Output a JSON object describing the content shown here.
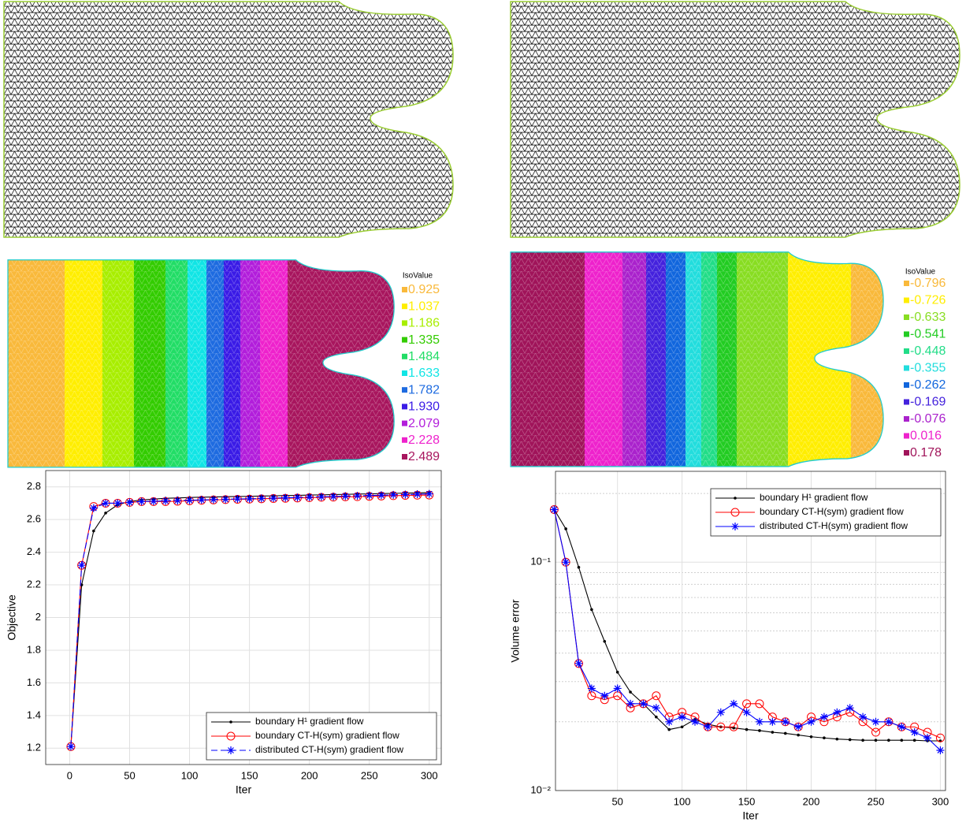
{
  "contours": [
    {
      "title": "IsoValue",
      "levels": [
        {
          "label": "0.925",
          "color": "#f9b93b"
        },
        {
          "label": "1.037",
          "color": "#ffee00"
        },
        {
          "label": "1.186",
          "color": "#a8ee00"
        },
        {
          "label": "1.335",
          "color": "#33cc00"
        },
        {
          "label": "1.484",
          "color": "#22dd66"
        },
        {
          "label": "1.633",
          "color": "#11e5e5"
        },
        {
          "label": "1.782",
          "color": "#1e6be0"
        },
        {
          "label": "1.930",
          "color": "#3a1be6"
        },
        {
          "label": "2.079",
          "color": "#b21edb"
        },
        {
          "label": "2.228",
          "color": "#ee22cc"
        },
        {
          "label": "2.489",
          "color": "#a8165e"
        }
      ]
    },
    {
      "title": "IsoValue",
      "levels": [
        {
          "label": "-0.796",
          "color": "#f9b93b"
        },
        {
          "label": "-0.726",
          "color": "#ffee00"
        },
        {
          "label": "-0.633",
          "color": "#88dd22"
        },
        {
          "label": "-0.541",
          "color": "#22cc22"
        },
        {
          "label": "-0.448",
          "color": "#22dd88"
        },
        {
          "label": "-0.355",
          "color": "#22dddd"
        },
        {
          "label": "-0.262",
          "color": "#1166dd"
        },
        {
          "label": "-0.169",
          "color": "#4422dd"
        },
        {
          "label": "-0.076",
          "color": "#aa22cc"
        },
        {
          "label": "0.016",
          "color": "#ee22cc"
        },
        {
          "label": "0.178",
          "color": "#a0145a"
        }
      ]
    }
  ],
  "chart_data": [
    {
      "type": "line",
      "x_label": "Iter",
      "y_label": "Objective",
      "grid": true,
      "legend": "lower right",
      "xlim": [
        -20,
        310
      ],
      "xticks": [
        0,
        50,
        100,
        150,
        200,
        250,
        300
      ],
      "ylim": [
        1.1,
        2.9
      ],
      "yticks": [
        1.2,
        1.4,
        1.6,
        1.8,
        2,
        2.2,
        2.4,
        2.6,
        2.8
      ],
      "x": [
        1,
        10,
        20,
        30,
        40,
        50,
        60,
        70,
        80,
        90,
        100,
        110,
        120,
        130,
        140,
        150,
        160,
        170,
        180,
        190,
        200,
        210,
        220,
        230,
        240,
        250,
        260,
        270,
        280,
        290,
        300
      ],
      "series": [
        {
          "name": "boundary H¹ gradient flow",
          "color": "#000000",
          "marker": "dot",
          "dash": false,
          "values": [
            1.21,
            2.2,
            2.53,
            2.64,
            2.69,
            2.71,
            2.72,
            2.725,
            2.73,
            2.732,
            2.735,
            2.737,
            2.738,
            2.74,
            2.741,
            2.742,
            2.744,
            2.745,
            2.747,
            2.748,
            2.75,
            2.751,
            2.753,
            2.754,
            2.756,
            2.757,
            2.759,
            2.76,
            2.762,
            2.763,
            2.765
          ]
        },
        {
          "name": "boundary CT-H(sym) gradient flow",
          "color": "#ff0000",
          "marker": "circle",
          "dash": false,
          "values": [
            1.21,
            2.32,
            2.68,
            2.7,
            2.7,
            2.705,
            2.71,
            2.71,
            2.71,
            2.712,
            2.715,
            2.718,
            2.72,
            2.722,
            2.724,
            2.725,
            2.727,
            2.729,
            2.73,
            2.732,
            2.734,
            2.736,
            2.737,
            2.739,
            2.74,
            2.742,
            2.744,
            2.746,
            2.748,
            2.749,
            2.75
          ]
        },
        {
          "name": "distributed CT-H(sym) gradient flow",
          "color": "#0000ff",
          "marker": "star",
          "dash": true,
          "values": [
            1.21,
            2.32,
            2.67,
            2.7,
            2.7,
            2.705,
            2.71,
            2.712,
            2.714,
            2.716,
            2.718,
            2.72,
            2.722,
            2.724,
            2.726,
            2.727,
            2.729,
            2.731,
            2.733,
            2.735,
            2.737,
            2.739,
            2.741,
            2.743,
            2.745,
            2.747,
            2.749,
            2.751,
            2.753,
            2.755,
            2.757
          ]
        }
      ]
    },
    {
      "type": "line",
      "x_label": "Iter",
      "y_label": "Volume error",
      "grid": true,
      "log_y": true,
      "legend": "upper right",
      "xlim": [
        2,
        304
      ],
      "xticks": [
        50,
        100,
        150,
        200,
        250,
        300
      ],
      "ylim": [
        0.01,
        0.25
      ],
      "yticks": [
        {
          "value": 0.01,
          "label": "10⁻²"
        },
        {
          "value": 0.1,
          "label": "10⁻¹"
        }
      ],
      "yminorticks": [
        0.02,
        0.03,
        0.04,
        0.05,
        0.06,
        0.07,
        0.08,
        0.09,
        0.2
      ],
      "x": [
        1,
        10,
        20,
        30,
        40,
        50,
        60,
        70,
        80,
        90,
        100,
        110,
        120,
        130,
        140,
        150,
        160,
        170,
        180,
        190,
        200,
        210,
        220,
        230,
        240,
        250,
        260,
        270,
        280,
        290,
        300
      ],
      "series": [
        {
          "name": "boundary H¹ gradient flow",
          "color": "#000000",
          "marker": "dot",
          "dash": false,
          "values": [
            0.17,
            0.14,
            0.095,
            0.062,
            0.045,
            0.033,
            0.027,
            0.024,
            0.021,
            0.0185,
            0.019,
            0.0205,
            0.0195,
            0.019,
            0.0188,
            0.0185,
            0.0183,
            0.018,
            0.0178,
            0.0175,
            0.0172,
            0.017,
            0.0168,
            0.0167,
            0.0166,
            0.0166,
            0.0166,
            0.0166,
            0.0166,
            0.0165,
            0.0165
          ]
        },
        {
          "name": "boundary CT-H(sym) gradient flow",
          "color": "#ff0000",
          "marker": "circle",
          "dash": false,
          "values": [
            0.17,
            0.1,
            0.036,
            0.026,
            0.025,
            0.026,
            0.023,
            0.024,
            0.026,
            0.021,
            0.022,
            0.021,
            0.019,
            0.019,
            0.019,
            0.024,
            0.024,
            0.021,
            0.02,
            0.019,
            0.021,
            0.02,
            0.021,
            0.022,
            0.02,
            0.018,
            0.02,
            0.019,
            0.019,
            0.018,
            0.017
          ]
        },
        {
          "name": "distributed CT-H(sym) gradient flow",
          "color": "#0000ff",
          "marker": "star",
          "dash": false,
          "values": [
            0.17,
            0.1,
            0.036,
            0.028,
            0.026,
            0.028,
            0.024,
            0.024,
            0.023,
            0.02,
            0.021,
            0.02,
            0.019,
            0.022,
            0.024,
            0.022,
            0.02,
            0.02,
            0.02,
            0.019,
            0.02,
            0.021,
            0.022,
            0.023,
            0.021,
            0.02,
            0.02,
            0.019,
            0.018,
            0.017,
            0.015
          ]
        }
      ]
    }
  ]
}
